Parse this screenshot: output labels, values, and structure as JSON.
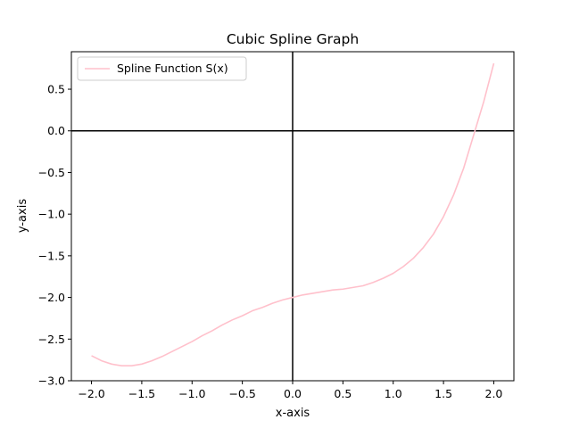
{
  "chart_data": {
    "type": "line",
    "title": "Cubic Spline Graph",
    "xlabel": "x-axis",
    "ylabel": "y-axis",
    "xlim": [
      -2.2,
      2.2
    ],
    "ylim": [
      -3.0,
      0.95
    ],
    "xticks": [
      -2.0,
      -1.5,
      -1.0,
      -0.5,
      0.0,
      0.5,
      1.0,
      1.5,
      2.0
    ],
    "xtick_labels": [
      "−2.0",
      "−1.5",
      "−1.0",
      "−0.5",
      "0.0",
      "0.5",
      "1.0",
      "1.5",
      "2.0"
    ],
    "yticks": [
      -3.0,
      -2.5,
      -2.0,
      -1.5,
      -1.0,
      -0.5,
      0.0,
      0.5
    ],
    "ytick_labels": [
      "−3.0",
      "−2.5",
      "−2.0",
      "−1.5",
      "−1.0",
      "−0.5",
      "0.0",
      "0.5"
    ],
    "grid": false,
    "reference_lines": {
      "x": 0,
      "y": 0,
      "color": "#000000"
    },
    "legend": {
      "position": "top-left"
    },
    "series": [
      {
        "name": "Spline Function S(x)",
        "color": "#ffc0cb",
        "x": [
          -2.0,
          -1.9,
          -1.8,
          -1.7,
          -1.6,
          -1.5,
          -1.4,
          -1.3,
          -1.2,
          -1.1,
          -1.0,
          -0.9,
          -0.8,
          -0.7,
          -0.6,
          -0.5,
          -0.4,
          -0.3,
          -0.2,
          -0.1,
          0.0,
          0.1,
          0.2,
          0.3,
          0.4,
          0.5,
          0.6,
          0.7,
          0.8,
          0.9,
          1.0,
          1.1,
          1.2,
          1.3,
          1.4,
          1.5,
          1.6,
          1.7,
          1.8,
          1.9,
          2.0
        ],
        "y": [
          -2.7,
          -2.76,
          -2.8,
          -2.82,
          -2.82,
          -2.8,
          -2.76,
          -2.71,
          -2.65,
          -2.59,
          -2.53,
          -2.46,
          -2.4,
          -2.33,
          -2.27,
          -2.22,
          -2.16,
          -2.12,
          -2.07,
          -2.03,
          -2.0,
          -1.97,
          -1.95,
          -1.93,
          -1.91,
          -1.9,
          -1.88,
          -1.86,
          -1.82,
          -1.77,
          -1.71,
          -1.63,
          -1.53,
          -1.4,
          -1.24,
          -1.03,
          -0.77,
          -0.45,
          -0.05,
          0.35,
          0.81
        ]
      }
    ]
  }
}
